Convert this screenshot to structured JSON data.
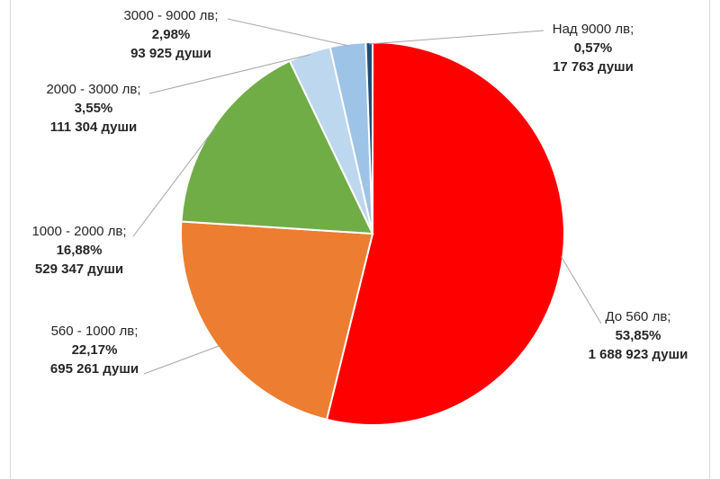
{
  "chart_data": {
    "type": "pie",
    "title": "",
    "start_angle_deg": 0,
    "direction": "clockwise",
    "slices": [
      {
        "category": "До 560 лв",
        "percent_label": "53,85%",
        "count_label": "1 688 923 души",
        "value": 1688923,
        "color": "#ff0000"
      },
      {
        "category": "560 - 1000 лв",
        "percent_label": "22,17%",
        "count_label": "695 261 души",
        "value": 695261,
        "color": "#ed7d31"
      },
      {
        "category": "1000 - 2000 лв",
        "percent_label": "16,88%",
        "count_label": "529 347 души",
        "value": 529347,
        "color": "#70ad47"
      },
      {
        "category": "2000 - 3000 лв",
        "percent_label": "3,55%",
        "count_label": "111 304 души",
        "value": 111304,
        "color": "#bdd7ee"
      },
      {
        "category": "3000 - 9000 лв",
        "percent_label": "2,98%",
        "count_label": "93 925 души",
        "value": 93925,
        "color": "#9dc3e6"
      },
      {
        "category": "Над 9000 лв",
        "percent_label": "0,57%",
        "count_label": "17 763 души",
        "value": 17763,
        "color": "#1f4e79"
      }
    ],
    "legend": "none"
  }
}
